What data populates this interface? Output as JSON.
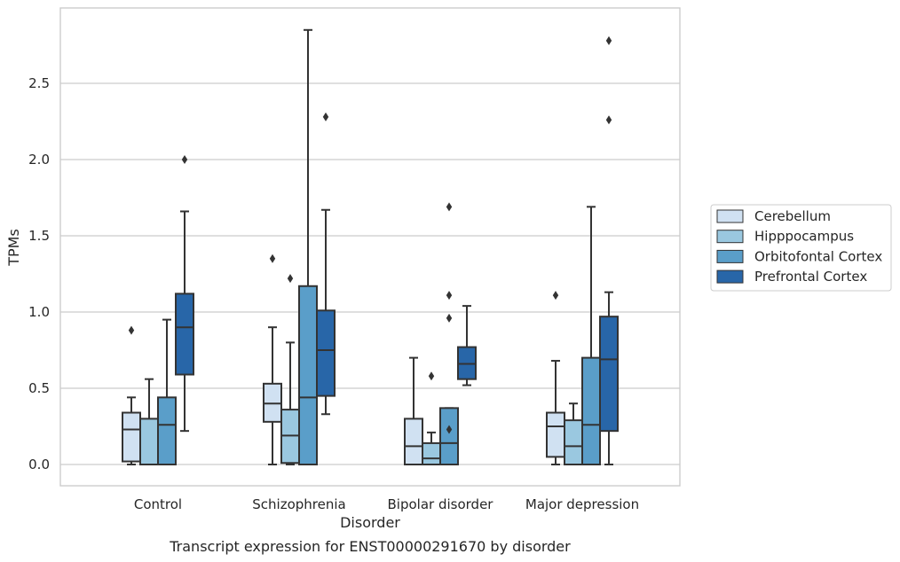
{
  "chart_data": {
    "type": "box",
    "ylabel": "TPMs",
    "xlabel": "Disorder",
    "caption": "Transcript expression for ENST00000291670 by disorder",
    "yticks": [
      "0.0",
      "0.5",
      "1.0",
      "1.5",
      "2.0",
      "2.5"
    ],
    "ylim": [
      -0.14,
      2.99
    ],
    "grid": "horizontal",
    "legend_placement": "right",
    "categories": [
      "Control",
      "Schizophrenia",
      "Bipolar disorder",
      "Major depression"
    ],
    "series": [
      {
        "name": "Cerebellum",
        "color": "#d0e1f2",
        "boxes": [
          {
            "whislo": 0.0,
            "q1": 0.02,
            "med": 0.23,
            "q3": 0.34,
            "whishi": 0.44,
            "fliers": [
              0.88
            ]
          },
          {
            "whislo": 0.0,
            "q1": 0.28,
            "med": 0.4,
            "q3": 0.53,
            "whishi": 0.9,
            "fliers": [
              1.35
            ]
          },
          {
            "whislo": 0.0,
            "q1": 0.0,
            "med": 0.12,
            "q3": 0.3,
            "whishi": 0.7,
            "fliers": []
          },
          {
            "whislo": 0.0,
            "q1": 0.05,
            "med": 0.25,
            "q3": 0.34,
            "whishi": 0.68,
            "fliers": [
              1.11
            ]
          }
        ]
      },
      {
        "name": "Hipppocampus",
        "color": "#9ac8e0",
        "boxes": [
          {
            "whislo": 0.0,
            "q1": 0.0,
            "med": 0.0,
            "q3": 0.3,
            "whishi": 0.56,
            "fliers": []
          },
          {
            "whislo": 0.0,
            "q1": 0.01,
            "med": 0.19,
            "q3": 0.36,
            "whishi": 0.8,
            "fliers": [
              1.22
            ]
          },
          {
            "whislo": 0.0,
            "q1": 0.0,
            "med": 0.04,
            "q3": 0.14,
            "whishi": 0.21,
            "fliers": [
              0.58
            ]
          },
          {
            "whislo": 0.0,
            "q1": 0.0,
            "med": 0.12,
            "q3": 0.29,
            "whishi": 0.4,
            "fliers": []
          }
        ]
      },
      {
        "name": "Orbitofontal Cortex",
        "color": "#5a9ec9",
        "boxes": [
          {
            "whislo": 0.0,
            "q1": 0.0,
            "med": 0.26,
            "q3": 0.44,
            "whishi": 0.95,
            "fliers": []
          },
          {
            "whislo": 0.0,
            "q1": 0.0,
            "med": 0.44,
            "q3": 1.17,
            "whishi": 2.85,
            "fliers": []
          },
          {
            "whislo": 0.0,
            "q1": 0.0,
            "med": 0.14,
            "q3": 0.37,
            "whishi": 0.37,
            "fliers": [
              1.69,
              1.11,
              0.96,
              0.23
            ]
          },
          {
            "whislo": 0.0,
            "q1": 0.0,
            "med": 0.26,
            "q3": 0.7,
            "whishi": 1.69,
            "fliers": []
          }
        ]
      },
      {
        "name": "Prefrontal Cortex",
        "color": "#2866a8",
        "boxes": [
          {
            "whislo": 0.22,
            "q1": 0.59,
            "med": 0.9,
            "q3": 1.12,
            "whishi": 1.66,
            "fliers": [
              2.0
            ]
          },
          {
            "whislo": 0.33,
            "q1": 0.45,
            "med": 0.75,
            "q3": 1.01,
            "whishi": 1.67,
            "fliers": [
              2.28
            ]
          },
          {
            "whislo": 0.52,
            "q1": 0.56,
            "med": 0.66,
            "q3": 0.77,
            "whishi": 1.04,
            "fliers": []
          },
          {
            "whislo": 0.0,
            "q1": 0.22,
            "med": 0.69,
            "q3": 0.97,
            "whishi": 1.13,
            "fliers": [
              2.78,
              2.26
            ]
          }
        ]
      }
    ]
  }
}
